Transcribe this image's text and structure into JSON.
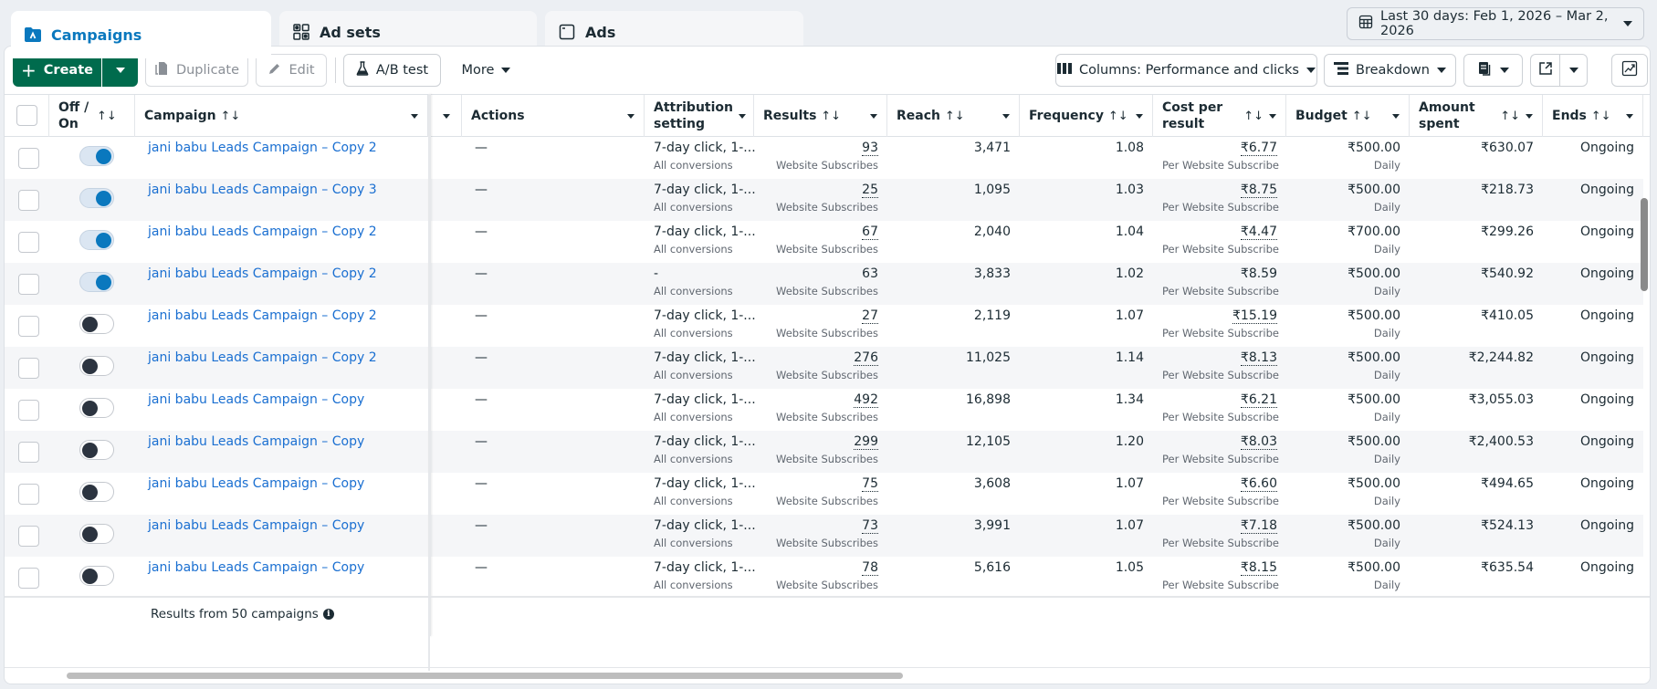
{
  "tabs": [
    {
      "label": "Campaigns",
      "icon": "campaign-folder-icon",
      "active": true
    },
    {
      "label": "Ad sets",
      "icon": "grid-icon",
      "active": false
    },
    {
      "label": "Ads",
      "icon": "ad-window-icon",
      "active": false
    }
  ],
  "date_range": {
    "label": "Last 30 days: Feb 1, 2026 – Mar 2, 2026",
    "icon": "calendar-icon"
  },
  "toolbar": {
    "create_label": "Create",
    "duplicate_label": "Duplicate",
    "edit_label": "Edit",
    "ab_test_label": "A/B test",
    "more_label": "More",
    "columns_label": "Columns: Performance and clicks",
    "breakdown_label": "Breakdown"
  },
  "columns": {
    "off_on": "Off / On",
    "campaign": "Campaign",
    "actions": "Actions",
    "attribution": "Attribution setting",
    "results": "Results",
    "reach": "Reach",
    "frequency": "Frequency",
    "cost_per_result": "Cost per result",
    "budget": "Budget",
    "amount_spent": "Amount spent",
    "ends": "Ends",
    "sort_glyph": "↑↓"
  },
  "rows": [
    {
      "on": true,
      "name": "jani babu Leads Campaign – Copy 2",
      "actions": "—",
      "attribution": "7-day click, 1-...",
      "attribution_sub": "All conversions",
      "results": "93",
      "results_sub": "Website Subscribes",
      "reach": "3,471",
      "frequency": "1.08",
      "cost": "₹6.77",
      "cost_sub": "Per Website Subscribe",
      "budget": "₹500.00",
      "budget_sub": "Daily",
      "spent": "₹630.07",
      "ends": "Ongoing"
    },
    {
      "on": true,
      "name": "jani babu Leads Campaign – Copy 3",
      "actions": "—",
      "attribution": "7-day click, 1-...",
      "attribution_sub": "All conversions",
      "results": "25",
      "results_sub": "Website Subscribes",
      "reach": "1,095",
      "frequency": "1.03",
      "cost": "₹8.75",
      "cost_sub": "Per Website Subscribe",
      "budget": "₹500.00",
      "budget_sub": "Daily",
      "spent": "₹218.73",
      "ends": "Ongoing"
    },
    {
      "on": true,
      "name": "jani babu Leads Campaign – Copy 2",
      "actions": "—",
      "attribution": "7-day click, 1-...",
      "attribution_sub": "All conversions",
      "results": "67",
      "results_sub": "Website Subscribes",
      "reach": "2,040",
      "frequency": "1.04",
      "cost": "₹4.47",
      "cost_sub": "Per Website Subscribe",
      "budget": "₹700.00",
      "budget_sub": "Daily",
      "spent": "₹299.26",
      "ends": "Ongoing"
    },
    {
      "on": true,
      "name": "jani babu Leads Campaign – Copy 2",
      "actions": "—",
      "attribution": "-",
      "attribution_sub": "All conversions",
      "results": "63",
      "results_sub": "Website Subscribes",
      "reach": "3,833",
      "frequency": "1.02",
      "cost": "₹8.59",
      "cost_sub": "Per Website Subscribe",
      "budget": "₹500.00",
      "budget_sub": "Daily",
      "spent": "₹540.92",
      "ends": "Ongoing"
    },
    {
      "on": false,
      "name": "jani babu Leads Campaign – Copy 2",
      "actions": "—",
      "attribution": "7-day click, 1-...",
      "attribution_sub": "All conversions",
      "results": "27",
      "results_sub": "Website Subscribes",
      "reach": "2,119",
      "frequency": "1.07",
      "cost": "₹15.19",
      "cost_sub": "Per Website Subscribe",
      "budget": "₹500.00",
      "budget_sub": "Daily",
      "spent": "₹410.05",
      "ends": "Ongoing"
    },
    {
      "on": false,
      "name": "jani babu Leads Campaign – Copy 2",
      "actions": "—",
      "attribution": "7-day click, 1-...",
      "attribution_sub": "All conversions",
      "results": "276",
      "results_sub": "Website Subscribes",
      "reach": "11,025",
      "frequency": "1.14",
      "cost": "₹8.13",
      "cost_sub": "Per Website Subscribe",
      "budget": "₹500.00",
      "budget_sub": "Daily",
      "spent": "₹2,244.82",
      "ends": "Ongoing"
    },
    {
      "on": false,
      "name": "jani babu Leads Campaign – Copy",
      "actions": "—",
      "attribution": "7-day click, 1-...",
      "attribution_sub": "All conversions",
      "results": "492",
      "results_sub": "Website Subscribes",
      "reach": "16,898",
      "frequency": "1.34",
      "cost": "₹6.21",
      "cost_sub": "Per Website Subscribe",
      "budget": "₹500.00",
      "budget_sub": "Daily",
      "spent": "₹3,055.03",
      "ends": "Ongoing"
    },
    {
      "on": false,
      "name": "jani babu Leads Campaign – Copy",
      "actions": "—",
      "attribution": "7-day click, 1-...",
      "attribution_sub": "All conversions",
      "results": "299",
      "results_sub": "Website Subscribes",
      "reach": "12,105",
      "frequency": "1.20",
      "cost": "₹8.03",
      "cost_sub": "Per Website Subscribe",
      "budget": "₹500.00",
      "budget_sub": "Daily",
      "spent": "₹2,400.53",
      "ends": "Ongoing"
    },
    {
      "on": false,
      "name": "jani babu Leads Campaign – Copy",
      "actions": "—",
      "attribution": "7-day click, 1-...",
      "attribution_sub": "All conversions",
      "results": "75",
      "results_sub": "Website Subscribes",
      "reach": "3,608",
      "frequency": "1.07",
      "cost": "₹6.60",
      "cost_sub": "Per Website Subscribe",
      "budget": "₹500.00",
      "budget_sub": "Daily",
      "spent": "₹494.65",
      "ends": "Ongoing"
    },
    {
      "on": false,
      "name": "jani babu Leads Campaign – Copy",
      "actions": "—",
      "attribution": "7-day click, 1-...",
      "attribution_sub": "All conversions",
      "results": "73",
      "results_sub": "Website Subscribes",
      "reach": "3,991",
      "frequency": "1.07",
      "cost": "₹7.18",
      "cost_sub": "Per Website Subscribe",
      "budget": "₹500.00",
      "budget_sub": "Daily",
      "spent": "₹524.13",
      "ends": "Ongoing"
    },
    {
      "on": false,
      "name": "jani babu Leads Campaign – Copy",
      "actions": "—",
      "attribution": "7-day click, 1-...",
      "attribution_sub": "All conversions",
      "results": "78",
      "results_sub": "Website Subscribes",
      "reach": "5,616",
      "frequency": "1.05",
      "cost": "₹8.15",
      "cost_sub": "Per Website Subscribe",
      "budget": "₹500.00",
      "budget_sub": "Daily",
      "spent": "₹635.54",
      "ends": "Ongoing"
    }
  ],
  "footer": {
    "results_text": "Results from 50 campaigns",
    "info_icon": "i"
  },
  "colors": {
    "accent": "#0a78be",
    "create_green": "#006b4d",
    "link": "#1a6fd1",
    "toggle_off_knob": "#2c3440"
  }
}
